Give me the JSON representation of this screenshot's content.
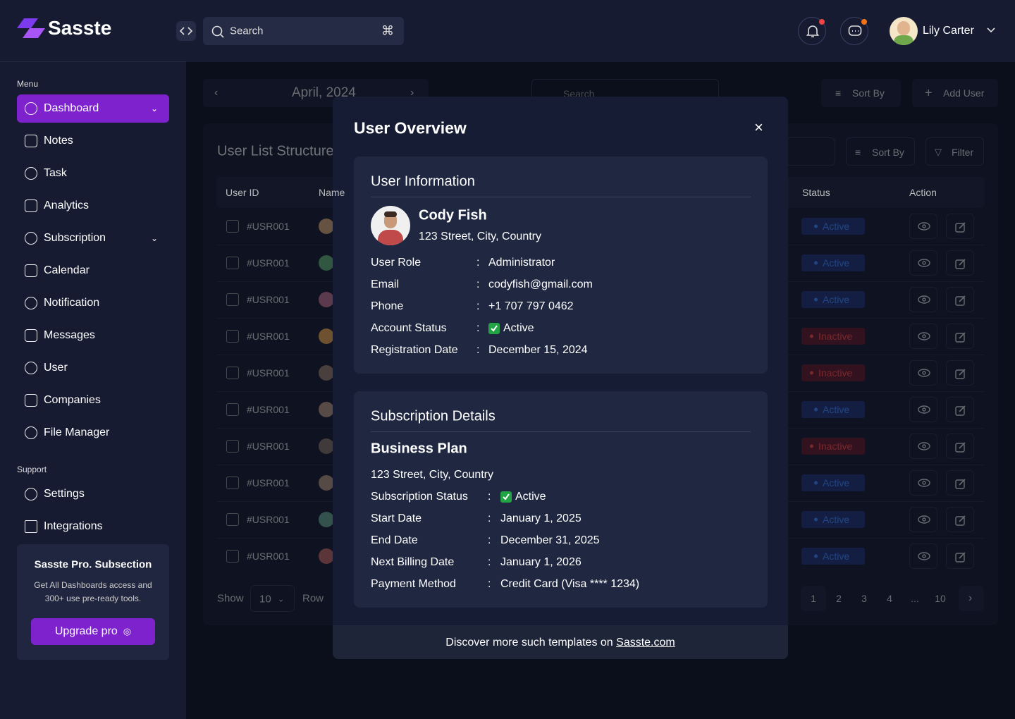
{
  "header": {
    "logo": "Sasste",
    "search": "Search",
    "user_name": "Lily Carter"
  },
  "sidebar": {
    "menu_label": "Menu",
    "menu": [
      "Dashboard",
      "Notes",
      "Task",
      "Analytics",
      "Subscription",
      "Calendar",
      "Notification",
      "Messages",
      "User",
      "Companies",
      "File Manager"
    ],
    "support_label": "Support",
    "support": [
      "Settings",
      "Integrations"
    ],
    "promo": {
      "title": "Sasste Pro. Subsection",
      "text": "Get All Dashboards access and 300+ use pre-ready tools.",
      "button": "Upgrade pro"
    }
  },
  "toolbar": {
    "month": "April, 2024",
    "search": "Search",
    "sort": "Sort By",
    "add": "Add User"
  },
  "table": {
    "title": "User List Structure",
    "sort": "Sort By",
    "filter": "Filter",
    "columns": [
      "User ID",
      "Name",
      "Status",
      "Action"
    ],
    "rows": [
      {
        "id": "#USR001",
        "status": "Active"
      },
      {
        "id": "#USR001",
        "status": "Active"
      },
      {
        "id": "#USR001",
        "status": "Active"
      },
      {
        "id": "#USR001",
        "status": "Inactive"
      },
      {
        "id": "#USR001",
        "status": "Inactive"
      },
      {
        "id": "#USR001",
        "status": "Active"
      },
      {
        "id": "#USR001",
        "status": "Inactive"
      },
      {
        "id": "#USR001",
        "status": "Active"
      },
      {
        "id": "#USR001",
        "status": "Active"
      },
      {
        "id": "#USR001",
        "status": "Active"
      }
    ],
    "show": "Show",
    "page_size": "10",
    "row": "Row",
    "pages": [
      "1",
      "2",
      "3",
      "4",
      "...",
      "10"
    ]
  },
  "modal": {
    "title": "User Overview",
    "user_info": {
      "heading": "User Information",
      "name": "Cody Fish",
      "address": "123 Street, City, Country",
      "fields": [
        {
          "label": "User Role",
          "value": "Administrator"
        },
        {
          "label": "Email",
          "value": "codyfish@gmail.com"
        },
        {
          "label": "Phone",
          "value": "+1 707 797 0462"
        },
        {
          "label": "Account Status",
          "value": "Active"
        },
        {
          "label": "Registration Date",
          "value": "December 15, 2024"
        }
      ]
    },
    "subscription": {
      "heading": "Subscription Details",
      "plan": "Business Plan",
      "address": "123 Street, City, Country",
      "fields": [
        {
          "label": "Subscription Status",
          "value": "Active"
        },
        {
          "label": "Start Date",
          "value": "January 1, 2025"
        },
        {
          "label": "End Date",
          "value": "December 31, 2025"
        },
        {
          "label": "Next Billing Date",
          "value": "January 1, 2026"
        },
        {
          "label": "Payment Method",
          "value": "Credit Card (Visa **** 1234)"
        }
      ]
    },
    "footer_text": "Discover more such templates on ",
    "footer_link": "Sasste.com"
  }
}
